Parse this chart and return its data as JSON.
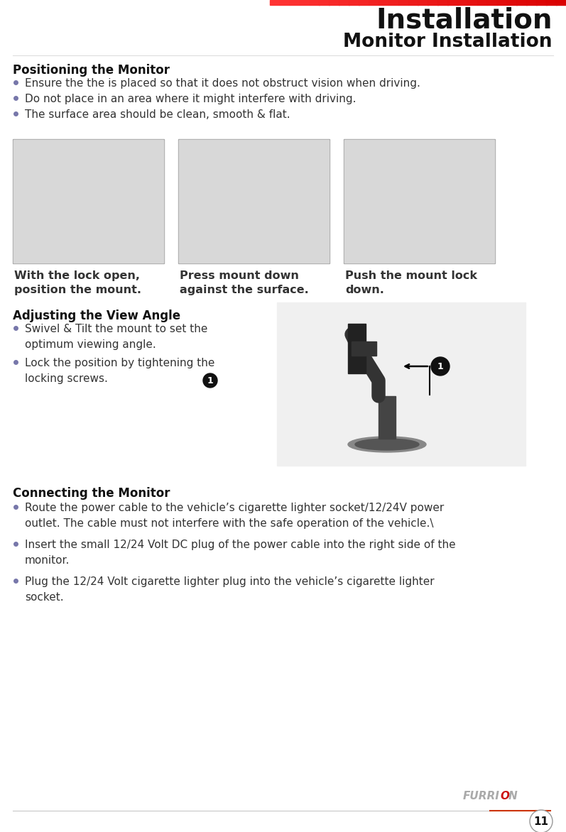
{
  "bg_color": "#ffffff",
  "header_bar_color": "#cc2222",
  "title": "Installation",
  "subtitle": "Monitor Installation",
  "title_fontsize": 28,
  "subtitle_fontsize": 19,
  "section1_header": "Positioning the Monitor",
  "section1_bullets": [
    "Ensure the the is placed so that it does not obstruct vision when driving.",
    "Do not place in an area where it might interfere with driving.",
    "The surface area should be clean, smooth & flat."
  ],
  "image_captions": [
    "With the lock open,\nposition the mount.",
    "Press mount down\nagainst the surface.",
    "Push the mount lock\ndown."
  ],
  "section2_header": "Adjusting the View Angle",
  "section2_bullets": [
    "Swivel & Tilt the mount to set the\noptimum viewing angle.",
    "Lock the position by tightening the\nlocking screws."
  ],
  "section3_header": "Connecting the Monitor",
  "section3_bullets": [
    "Route the power cable to the vehicle’s cigarette lighter socket/12/24V power\noutlet. The cable must not interfere with the safe operation of the vehicle.\\",
    "Insert the small 12/24 Volt DC plug of the power cable into the right side of the\nmonitor.",
    "Plug the 12/24 Volt cigarette lighter plug into the vehicle’s cigarette lighter\nsocket."
  ],
  "page_number": "11",
  "bullet_color": "#7777aa",
  "header_text_color": "#111111",
  "body_text_color": "#333333",
  "section_header_color": "#111111",
  "footer_line_color_left": "#c8c8c8",
  "footer_line_color_right": "#cc3300",
  "img_placeholder_color": "#c0c0c0",
  "img_border_color": "#999999"
}
